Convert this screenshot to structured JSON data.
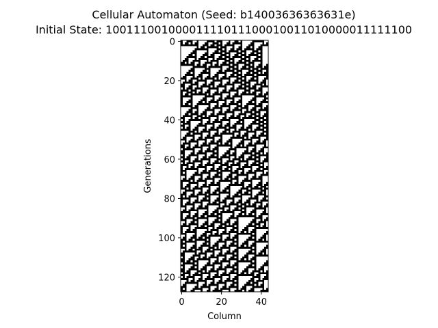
{
  "chart_data": {
    "type": "heatmap",
    "title_line1": "Cellular Automaton (Seed: b14003636363631e)",
    "title_line2": "Initial State: 10011100100001111011100010011010000011111100",
    "xlabel": "Column",
    "ylabel": "Generations",
    "initial_state": "10011100100001111011100010011010000011111100",
    "rule": 110,
    "boundary": "periodic",
    "columns": 44,
    "generations": 128,
    "xlim": [
      -0.5,
      43.5
    ],
    "ylim": [
      127.5,
      -0.5
    ],
    "xticks": [
      0,
      20,
      40
    ],
    "yticks": [
      0,
      20,
      40,
      60,
      80,
      100,
      120
    ],
    "colormap": {
      "1": "#000000",
      "0": "#ffffff"
    }
  }
}
